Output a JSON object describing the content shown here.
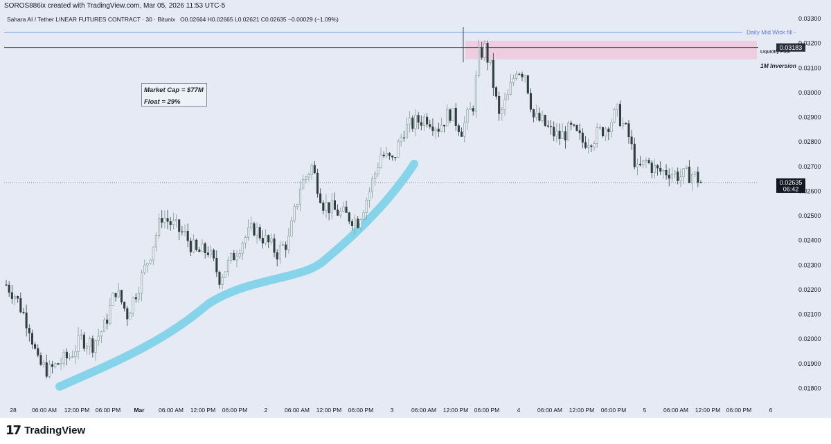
{
  "header": {
    "created_by": "SOROS886ix created with TradingView.com, Mar 05, 2026 11:53 UTC-5",
    "symbol": "Sahara AI / Tether LINEAR FUTURES CONTRACT · 30 · Bitunix",
    "ohlc": "O0.02664  H0.02665  L0.02621  C0.02635  −0.00029 (−1.09%)"
  },
  "annotation": {
    "market_cap": "Market Cap = $77M",
    "float": "Float = 29%"
  },
  "labels": {
    "daily_mid": "Daily Mid Wick fill -",
    "liquidity_pool": "Liquidity Pool",
    "inversion": "1M Inversion"
  },
  "price_badges": {
    "level": "0.03183",
    "current": "0.02635",
    "countdown": "06:42"
  },
  "footer": {
    "brand": "TradingView",
    "mark": "17"
  },
  "colors": {
    "background": "#e6eaf4",
    "candle": "#2f3d3f",
    "zone": "#f0c8dc",
    "trend": "#7fd3e8",
    "level_line": "#5b7fd6"
  },
  "chart_data": {
    "type": "candlestick",
    "timeframe": "30",
    "ylim": [
      0.0176,
      0.0332
    ],
    "y_ticks": [
      "0.03300",
      "0.03200",
      "0.03100",
      "0.03000",
      "0.02900",
      "0.02800",
      "0.02700",
      "0.02600",
      "0.02500",
      "0.02400",
      "0.02300",
      "0.02200",
      "0.02100",
      "0.02000",
      "0.01900",
      "0.01800"
    ],
    "x_ticks": [
      "28",
      "06:00 AM",
      "12:00 PM",
      "06:00 PM",
      "Mar",
      "06:00 AM",
      "12:00 PM",
      "06:00 PM",
      "2",
      "06:00 AM",
      "12:00 PM",
      "06:00 PM",
      "3",
      "06:00 AM",
      "12:00 PM",
      "06:00 PM",
      "4",
      "06:00 AM",
      "12:00 PM",
      "06:00 PM",
      "5",
      "06:00 AM",
      "12:00 PM",
      "06:00 PM",
      "6"
    ],
    "levels": {
      "daily_mid_wick": 0.03245,
      "liquidity_pool": 0.03183,
      "zone_top": 0.0321,
      "zone_bottom": 0.03135
    },
    "close_path": [
      [
        0,
        0.0222
      ],
      [
        3,
        0.0218
      ],
      [
        8,
        0.0205
      ],
      [
        11,
        0.019
      ],
      [
        15,
        0.0187
      ],
      [
        18,
        0.019
      ],
      [
        22,
        0.0193
      ],
      [
        26,
        0.02
      ],
      [
        30,
        0.0198
      ],
      [
        34,
        0.0205
      ],
      [
        38,
        0.022
      ],
      [
        42,
        0.021
      ],
      [
        46,
        0.0222
      ],
      [
        50,
        0.0235
      ],
      [
        54,
        0.025
      ],
      [
        58,
        0.0246
      ],
      [
        62,
        0.0242
      ],
      [
        66,
        0.0235
      ],
      [
        70,
        0.0236
      ],
      [
        74,
        0.0225
      ],
      [
        78,
        0.0232
      ],
      [
        82,
        0.024
      ],
      [
        86,
        0.0245
      ],
      [
        90,
        0.024
      ],
      [
        94,
        0.0235
      ],
      [
        98,
        0.024
      ],
      [
        102,
        0.0262
      ],
      [
        106,
        0.027
      ],
      [
        110,
        0.0255
      ],
      [
        114,
        0.0252
      ],
      [
        118,
        0.025
      ],
      [
        122,
        0.0248
      ],
      [
        126,
        0.026
      ],
      [
        130,
        0.0275
      ],
      [
        134,
        0.0272
      ],
      [
        138,
        0.0285
      ],
      [
        142,
        0.0288
      ],
      [
        146,
        0.029
      ],
      [
        150,
        0.0286
      ],
      [
        154,
        0.0292
      ],
      [
        158,
        0.0285
      ],
      [
        162,
        0.0295
      ],
      [
        164,
        0.0315
      ],
      [
        166,
        0.0318
      ],
      [
        168,
        0.031
      ],
      [
        171,
        0.029
      ],
      [
        174,
        0.0298
      ],
      [
        177,
        0.031
      ],
      [
        180,
        0.0308
      ],
      [
        183,
        0.029
      ],
      [
        186,
        0.0288
      ],
      [
        189,
        0.0284
      ],
      [
        192,
        0.0282
      ],
      [
        196,
        0.0285
      ],
      [
        200,
        0.028
      ],
      [
        204,
        0.0282
      ],
      [
        208,
        0.0286
      ],
      [
        212,
        0.0292
      ],
      [
        216,
        0.0282
      ],
      [
        219,
        0.0268
      ],
      [
        222,
        0.0272
      ],
      [
        226,
        0.0268
      ],
      [
        230,
        0.0268
      ],
      [
        234,
        0.0266
      ],
      [
        238,
        0.0267
      ],
      [
        241,
        0.0264
      ]
    ]
  }
}
